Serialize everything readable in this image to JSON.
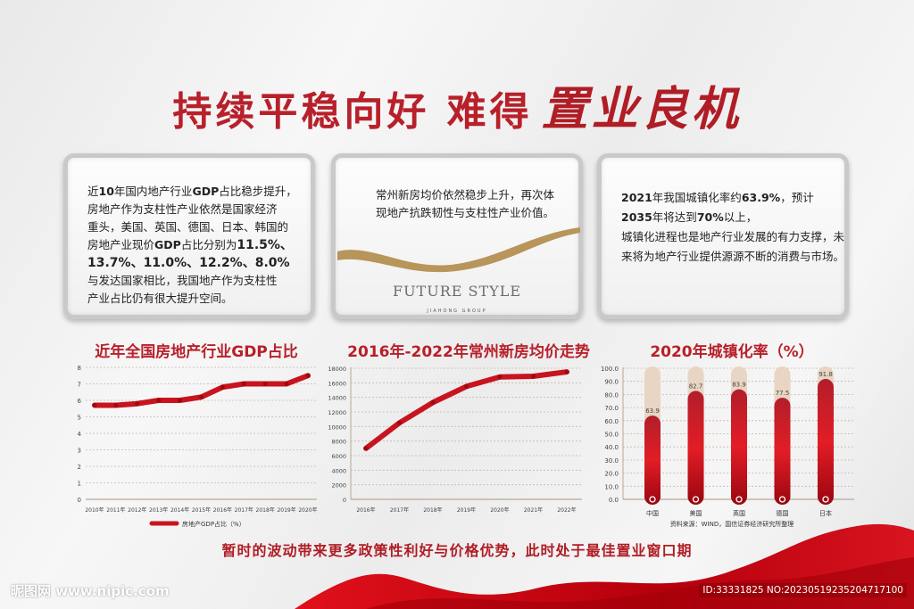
{
  "header": {
    "title_main": "持续平稳向好 难得",
    "title_callig": "置业良机"
  },
  "panels": {
    "left": {
      "lines": [
        "近",
        "10",
        "年国内地产行业",
        "GDP",
        "占比稳步提升，",
        "房地产作为支柱性产业依然是国家经济",
        "重头，美国、英国、德国、日本、韩国的",
        "房地产业现价",
        "GDP",
        "占比分别为",
        "11.5%、",
        "13.7%、11.0%、12.2%、8.0%",
        "与发达国家相比，我国地产作为支柱性",
        "产业占比仍有很大提升空间。"
      ]
    },
    "middle": {
      "text": "常州新房均价依然稳步上升，再次体现地产抗跌韧性与支柱性产业价值。",
      "brand": "FUTURE STYLE",
      "brand_sub": "JIAHONG GROUP"
    },
    "right": {
      "lines": [
        "2021",
        "年我国城镇化率约",
        "63.9%",
        "，预计",
        "2035",
        "年将达到",
        "70%",
        "以上，",
        "城镇化进程也是地产行业发展的有力支撑，未来将为地产行业提供源源不断的消费与市场。"
      ]
    }
  },
  "chart_data": [
    {
      "type": "line",
      "title": "近年全国房地产行业GDP占比",
      "categories": [
        "2010年",
        "2011年",
        "2012年",
        "2013年",
        "2014年",
        "2015年",
        "2016年",
        "2017年",
        "2018年",
        "2019年",
        "2020年"
      ],
      "series": [
        {
          "name": "房地产GDP占比（%）",
          "values": [
            5.7,
            5.7,
            5.8,
            6.0,
            6.0,
            6.2,
            6.8,
            7.0,
            7.0,
            7.0,
            7.5
          ]
        }
      ],
      "ylim": [
        0,
        8
      ],
      "yticks": [
        0,
        1,
        2,
        3,
        4,
        5,
        6,
        7,
        8
      ],
      "grid": true,
      "legend": "bottom",
      "color": "#c8141e"
    },
    {
      "type": "line",
      "title": "2016年-2022年常州新房均价走势",
      "categories": [
        "2016年",
        "2017年",
        "2018年",
        "2019年",
        "2020年",
        "2021年",
        "2022年"
      ],
      "series": [
        {
          "values": [
            7000,
            10500,
            13300,
            15500,
            16800,
            16900,
            17500
          ]
        }
      ],
      "ylim": [
        0,
        18000
      ],
      "yticks": [
        0,
        2000,
        4000,
        6000,
        8000,
        10000,
        12000,
        14000,
        16000,
        18000
      ],
      "grid": true,
      "color": "#c8141e"
    },
    {
      "type": "bar",
      "title": "2020年城镇化率（%）",
      "categories": [
        "中国",
        "美国",
        "英国",
        "德国",
        "日本"
      ],
      "values": [
        63.9,
        82.7,
        83.9,
        77.5,
        91.8
      ],
      "value_labels": [
        "63.9",
        "82.7",
        "83.9",
        "77.5",
        "91.8"
      ],
      "ylim": [
        0,
        100
      ],
      "yticks": [
        "0.0",
        "10.0",
        "20.0",
        "30.0",
        "40.0",
        "50.0",
        "60.0",
        "70.0",
        "80.0",
        "90.0",
        "100.0"
      ],
      "grid": true,
      "source": "资料来源：WIND，国信证券经济研究所整理",
      "color": "#c8141e",
      "track_color": "#e8d5c3"
    }
  ],
  "footer": {
    "slogan": "暂时的波动带来更多政策性利好与价格优势，此时处于最佳置业窗口期",
    "watermark": "昵图网 www.nipic.com",
    "id": "ID:33331825 NO:20230519235204717100"
  }
}
